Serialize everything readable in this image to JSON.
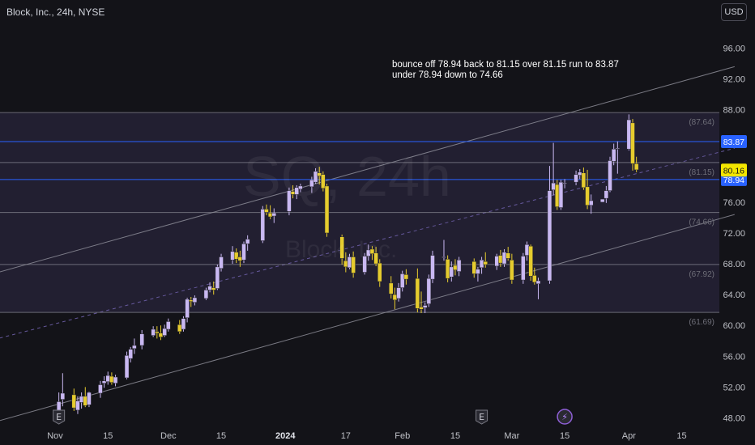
{
  "header": {
    "symbol": "Block, Inc., 24h, NYSE",
    "currency": "USD"
  },
  "watermark": {
    "ticker": "SQ, 24h",
    "name": "Block, Inc."
  },
  "annotation": {
    "line1": "bounce off 78.94 back to 81.15 over 81.15 run to 83.87",
    "line2": "under 78.94 down to 74.66"
  },
  "colors": {
    "background": "#131318",
    "bull": "#c9b8f2",
    "bear": "#e6cc2e",
    "level_line": "#2962ff",
    "channel": "#9b9ba6",
    "range_fill": "#28243a",
    "price_tag_bg": "#f3e600"
  },
  "chart_data": {
    "type": "candlestick",
    "title": "Block, Inc., 24h, NYSE",
    "y_axis": {
      "position": "right",
      "ticks": [
        "96.00",
        "92.00",
        "88.00",
        "84.00",
        "80.00",
        "76.00",
        "72.00",
        "68.00",
        "64.00",
        "60.00",
        "56.00",
        "52.00",
        "48.00"
      ],
      "range": [
        46.5,
        100
      ]
    },
    "x_axis": {
      "ticks": [
        {
          "label": "Nov",
          "date": "2023-11-01"
        },
        {
          "label": "15",
          "date": "2023-11-15"
        },
        {
          "label": "Dec",
          "date": "2023-12-01"
        },
        {
          "label": "15",
          "date": "2023-12-15"
        },
        {
          "label": "2024",
          "date": "2024-01-01"
        },
        {
          "label": "17",
          "date": "2024-01-17"
        },
        {
          "label": "Feb",
          "date": "2024-02-01"
        },
        {
          "label": "15",
          "date": "2024-02-15"
        },
        {
          "label": "Mar",
          "date": "2024-03-01"
        },
        {
          "label": "15",
          "date": "2024-03-15"
        },
        {
          "label": "Apr",
          "date": "2024-04-01"
        },
        {
          "label": "15",
          "date": "2024-04-15"
        }
      ]
    },
    "levels": [
      {
        "value": 87.64,
        "label": "(87.64)",
        "style": "gray"
      },
      {
        "value": 83.87,
        "label": "83.87",
        "style": "blue"
      },
      {
        "value": 81.15,
        "label": "(81.15)",
        "style": "gray"
      },
      {
        "value": 78.94,
        "label": "78.94",
        "style": "blue"
      },
      {
        "value": 74.66,
        "label": "(74.66)",
        "style": "gray"
      },
      {
        "value": 67.92,
        "label": "(67.92)",
        "style": "gray"
      },
      {
        "value": 61.69,
        "label": "(61.69)",
        "style": "gray"
      }
    ],
    "range_zone": {
      "from": 61.69,
      "to": 87.64
    },
    "channel": {
      "upper": [
        {
          "date": "2023-10-09",
          "value": 65.8
        },
        {
          "date": "2024-04-29",
          "value": 93.6
        }
      ],
      "middle": [
        {
          "date": "2023-10-09",
          "value": 57.3
        },
        {
          "date": "2024-04-29",
          "value": 83.0
        }
      ],
      "lower": [
        {
          "date": "2023-10-09",
          "value": 46.5
        },
        {
          "date": "2024-04-29",
          "value": 74.4
        }
      ]
    },
    "last_price": {
      "value": 80.16,
      "label": "80.16"
    },
    "event_markers": [
      {
        "date": "2023-11-02",
        "symbol": "E"
      },
      {
        "date": "2024-02-22",
        "symbol": "E"
      },
      {
        "date": "2024-03-15",
        "symbol": "⚡"
      }
    ],
    "candles": [
      {
        "date": "2023-11-02",
        "o": 49.0,
        "h": 51.3,
        "l": 47.2,
        "c": 50.1
      },
      {
        "date": "2023-11-03",
        "o": 50.4,
        "h": 53.8,
        "l": 49.5,
        "c": 51.2
      },
      {
        "date": "2023-11-06",
        "o": 51.0,
        "h": 51.8,
        "l": 48.9,
        "c": 49.3
      },
      {
        "date": "2023-11-07",
        "o": 49.0,
        "h": 50.8,
        "l": 48.5,
        "c": 50.2
      },
      {
        "date": "2023-11-08",
        "o": 50.0,
        "h": 51.3,
        "l": 49.2,
        "c": 50.8
      },
      {
        "date": "2023-11-09",
        "o": 50.8,
        "h": 52.0,
        "l": 49.4,
        "c": 49.6
      },
      {
        "date": "2023-11-10",
        "o": 49.7,
        "h": 51.4,
        "l": 49.4,
        "c": 51.3
      },
      {
        "date": "2023-11-13",
        "o": 51.2,
        "h": 52.8,
        "l": 50.6,
        "c": 52.3
      },
      {
        "date": "2023-11-14",
        "o": 52.5,
        "h": 53.4,
        "l": 51.9,
        "c": 52.8
      },
      {
        "date": "2023-11-15",
        "o": 52.7,
        "h": 54.0,
        "l": 52.3,
        "c": 53.5
      },
      {
        "date": "2023-11-16",
        "o": 53.4,
        "h": 53.9,
        "l": 52.3,
        "c": 52.6
      },
      {
        "date": "2023-11-17",
        "o": 52.5,
        "h": 53.6,
        "l": 52.1,
        "c": 53.3
      },
      {
        "date": "2023-11-20",
        "o": 53.2,
        "h": 56.6,
        "l": 53.0,
        "c": 56.1
      },
      {
        "date": "2023-11-21",
        "o": 55.7,
        "h": 57.2,
        "l": 55.2,
        "c": 56.9
      },
      {
        "date": "2023-11-22",
        "o": 57.0,
        "h": 58.3,
        "l": 56.3,
        "c": 57.4
      },
      {
        "date": "2023-11-24",
        "o": 57.4,
        "h": 59.4,
        "l": 56.9,
        "c": 58.9
      },
      {
        "date": "2023-11-27",
        "o": 58.7,
        "h": 59.9,
        "l": 58.5,
        "c": 59.5
      },
      {
        "date": "2023-11-28",
        "o": 59.2,
        "h": 59.9,
        "l": 58.3,
        "c": 59.0
      },
      {
        "date": "2023-11-29",
        "o": 59.0,
        "h": 60.0,
        "l": 58.1,
        "c": 58.5
      },
      {
        "date": "2023-11-30",
        "o": 58.7,
        "h": 60.1,
        "l": 58.5,
        "c": 59.6
      },
      {
        "date": "2023-12-01",
        "o": 59.5,
        "h": 60.9,
        "l": 59.2,
        "c": 60.5
      },
      {
        "date": "2023-12-04",
        "o": 60.1,
        "h": 60.7,
        "l": 58.9,
        "c": 59.2
      },
      {
        "date": "2023-12-05",
        "o": 59.5,
        "h": 61.2,
        "l": 59.2,
        "c": 60.9
      },
      {
        "date": "2023-12-06",
        "o": 61.0,
        "h": 63.6,
        "l": 60.4,
        "c": 63.4
      },
      {
        "date": "2023-12-07",
        "o": 63.3,
        "h": 63.7,
        "l": 62.4,
        "c": 63.1
      },
      {
        "date": "2023-12-08",
        "o": 63.0,
        "h": 63.9,
        "l": 62.6,
        "c": 63.6
      },
      {
        "date": "2023-12-11",
        "o": 63.5,
        "h": 64.9,
        "l": 63.3,
        "c": 64.6
      },
      {
        "date": "2023-12-12",
        "o": 64.6,
        "h": 65.6,
        "l": 64.3,
        "c": 65.1
      },
      {
        "date": "2023-12-13",
        "o": 64.9,
        "h": 65.7,
        "l": 64.0,
        "c": 64.6
      },
      {
        "date": "2023-12-14",
        "o": 64.8,
        "h": 67.9,
        "l": 64.6,
        "c": 67.6
      },
      {
        "date": "2023-12-15",
        "o": 67.4,
        "h": 69.3,
        "l": 67.0,
        "c": 68.9
      },
      {
        "date": "2023-12-18",
        "o": 68.5,
        "h": 70.3,
        "l": 68.0,
        "c": 69.6
      },
      {
        "date": "2023-12-19",
        "o": 69.5,
        "h": 70.0,
        "l": 68.1,
        "c": 68.6
      },
      {
        "date": "2023-12-20",
        "o": 68.9,
        "h": 69.7,
        "l": 67.6,
        "c": 68.4
      },
      {
        "date": "2023-12-21",
        "o": 68.5,
        "h": 70.9,
        "l": 68.1,
        "c": 70.6
      },
      {
        "date": "2023-12-22",
        "o": 70.6,
        "h": 71.7,
        "l": 69.7,
        "c": 71.2
      },
      {
        "date": "2023-12-26",
        "o": 71.0,
        "h": 75.5,
        "l": 70.7,
        "c": 75.1
      },
      {
        "date": "2023-12-27",
        "o": 75.1,
        "h": 75.7,
        "l": 74.3,
        "c": 74.7
      },
      {
        "date": "2023-12-28",
        "o": 74.6,
        "h": 75.6,
        "l": 73.8,
        "c": 74.1
      },
      {
        "date": "2023-12-29",
        "o": 74.2,
        "h": 75.2,
        "l": 73.3,
        "c": 74.6
      },
      {
        "date": "2024-01-02",
        "o": 74.8,
        "h": 77.9,
        "l": 74.3,
        "c": 77.5
      },
      {
        "date": "2024-01-03",
        "o": 77.4,
        "h": 78.2,
        "l": 76.5,
        "c": 77.0
      },
      {
        "date": "2024-01-04",
        "o": 77.0,
        "h": 78.2,
        "l": 76.4,
        "c": 77.9
      },
      {
        "date": "2024-01-05",
        "o": 77.7,
        "h": 78.4,
        "l": 77.3,
        "c": 78.1
      },
      {
        "date": "2024-01-08",
        "o": 78.0,
        "h": 79.3,
        "l": 77.2,
        "c": 78.9
      },
      {
        "date": "2024-01-09",
        "o": 78.6,
        "h": 80.4,
        "l": 78.4,
        "c": 80.0
      },
      {
        "date": "2024-01-10",
        "o": 79.8,
        "h": 80.6,
        "l": 78.3,
        "c": 79.4
      },
      {
        "date": "2024-01-11",
        "o": 79.6,
        "h": 80.0,
        "l": 77.4,
        "c": 77.8
      },
      {
        "date": "2024-01-12",
        "o": 78.1,
        "h": 78.4,
        "l": 71.5,
        "c": 72.0
      },
      {
        "date": "2024-01-16",
        "o": 71.5,
        "h": 71.8,
        "l": 67.9,
        "c": 68.7
      },
      {
        "date": "2024-01-17",
        "o": 68.4,
        "h": 69.5,
        "l": 66.9,
        "c": 67.6
      },
      {
        "date": "2024-01-18",
        "o": 67.5,
        "h": 69.3,
        "l": 67.3,
        "c": 68.9
      },
      {
        "date": "2024-01-19",
        "o": 68.9,
        "h": 69.6,
        "l": 66.2,
        "c": 66.8
      },
      {
        "date": "2024-01-22",
        "o": 66.9,
        "h": 69.4,
        "l": 66.6,
        "c": 69.0
      },
      {
        "date": "2024-01-23",
        "o": 69.0,
        "h": 70.5,
        "l": 68.4,
        "c": 69.8
      },
      {
        "date": "2024-01-24",
        "o": 69.9,
        "h": 70.3,
        "l": 68.5,
        "c": 69.3
      },
      {
        "date": "2024-01-25",
        "o": 69.4,
        "h": 70.2,
        "l": 67.7,
        "c": 68.0
      },
      {
        "date": "2024-01-26",
        "o": 68.1,
        "h": 68.6,
        "l": 65.0,
        "c": 65.7
      },
      {
        "date": "2024-01-29",
        "o": 65.5,
        "h": 66.4,
        "l": 63.5,
        "c": 64.1
      },
      {
        "date": "2024-01-30",
        "o": 64.0,
        "h": 64.9,
        "l": 62.1,
        "c": 63.3
      },
      {
        "date": "2024-01-31",
        "o": 63.5,
        "h": 65.5,
        "l": 63.1,
        "c": 64.9
      },
      {
        "date": "2024-02-01",
        "o": 64.9,
        "h": 67.1,
        "l": 64.4,
        "c": 66.7
      },
      {
        "date": "2024-02-02",
        "o": 66.6,
        "h": 67.3,
        "l": 65.3,
        "c": 66.0
      },
      {
        "date": "2024-02-05",
        "o": 66.1,
        "h": 67.4,
        "l": 61.7,
        "c": 62.2
      },
      {
        "date": "2024-02-06",
        "o": 62.4,
        "h": 64.4,
        "l": 61.6,
        "c": 62.1
      },
      {
        "date": "2024-02-07",
        "o": 62.3,
        "h": 63.0,
        "l": 61.6,
        "c": 62.6
      },
      {
        "date": "2024-02-08",
        "o": 62.8,
        "h": 66.6,
        "l": 62.4,
        "c": 66.1
      },
      {
        "date": "2024-02-09",
        "o": 66.0,
        "h": 69.7,
        "l": 65.5,
        "c": 69.1
      },
      {
        "date": "2024-02-12",
        "o": 68.8,
        "h": 71.1,
        "l": 68.4,
        "c": 68.9
      },
      {
        "date": "2024-02-13",
        "o": 68.6,
        "h": 69.1,
        "l": 65.6,
        "c": 66.1
      },
      {
        "date": "2024-02-14",
        "o": 66.3,
        "h": 68.3,
        "l": 65.7,
        "c": 67.6
      },
      {
        "date": "2024-02-15",
        "o": 67.8,
        "h": 68.6,
        "l": 66.5,
        "c": 67.2
      },
      {
        "date": "2024-02-16",
        "o": 67.0,
        "h": 68.9,
        "l": 66.4,
        "c": 68.5
      },
      {
        "date": "2024-02-20",
        "o": 68.3,
        "h": 68.7,
        "l": 66.2,
        "c": 66.7
      },
      {
        "date": "2024-02-21",
        "o": 66.7,
        "h": 67.6,
        "l": 65.7,
        "c": 67.3
      },
      {
        "date": "2024-02-22",
        "o": 67.5,
        "h": 68.9,
        "l": 66.7,
        "c": 68.5
      },
      {
        "date": "2024-02-23",
        "o": 68.3,
        "h": 69.5,
        "l": 67.5,
        "c": 67.9
      },
      {
        "date": "2024-02-26",
        "o": 67.7,
        "h": 69.3,
        "l": 67.2,
        "c": 69.0
      },
      {
        "date": "2024-02-27",
        "o": 69.1,
        "h": 69.8,
        "l": 67.6,
        "c": 68.1
      },
      {
        "date": "2024-02-28",
        "o": 68.0,
        "h": 69.9,
        "l": 67.6,
        "c": 69.5
      },
      {
        "date": "2024-02-29",
        "o": 69.4,
        "h": 70.2,
        "l": 68.4,
        "c": 68.7
      },
      {
        "date": "2024-03-01",
        "o": 68.5,
        "h": 69.3,
        "l": 65.4,
        "c": 65.9
      },
      {
        "date": "2024-03-04",
        "o": 65.9,
        "h": 69.4,
        "l": 65.4,
        "c": 69.0
      },
      {
        "date": "2024-03-05",
        "o": 69.1,
        "h": 70.9,
        "l": 68.4,
        "c": 70.5
      },
      {
        "date": "2024-03-06",
        "o": 70.3,
        "h": 70.5,
        "l": 65.8,
        "c": 66.4
      },
      {
        "date": "2024-03-07",
        "o": 66.5,
        "h": 67.5,
        "l": 65.3,
        "c": 65.6
      },
      {
        "date": "2024-03-08",
        "o": 65.4,
        "h": 66.2,
        "l": 63.4,
        "c": 65.8
      },
      {
        "date": "2024-03-11",
        "o": 65.8,
        "h": 80.7,
        "l": 65.4,
        "c": 77.5
      },
      {
        "date": "2024-03-12",
        "o": 77.6,
        "h": 83.7,
        "l": 76.9,
        "c": 78.5
      },
      {
        "date": "2024-03-13",
        "o": 78.3,
        "h": 78.9,
        "l": 75.0,
        "c": 75.4
      },
      {
        "date": "2024-03-14",
        "o": 75.3,
        "h": 78.9,
        "l": 75.0,
        "c": 78.6
      },
      {
        "date": "2024-03-15",
        "o": 78.4,
        "h": 79.0,
        "l": 77.8,
        "c": 78.5
      },
      {
        "date": "2024-03-18",
        "o": 78.6,
        "h": 80.1,
        "l": 78.2,
        "c": 79.6
      },
      {
        "date": "2024-03-19",
        "o": 79.5,
        "h": 80.3,
        "l": 79.0,
        "c": 79.9
      },
      {
        "date": "2024-03-20",
        "o": 79.8,
        "h": 80.5,
        "l": 77.6,
        "c": 77.9
      },
      {
        "date": "2024-03-21",
        "o": 78.0,
        "h": 80.2,
        "l": 75.1,
        "c": 75.6
      },
      {
        "date": "2024-03-22",
        "o": 75.6,
        "h": 77.0,
        "l": 74.5,
        "c": 76.2
      },
      {
        "date": "2024-03-25",
        "o": 76.0,
        "h": 76.4,
        "l": 76.0,
        "c": 76.4
      },
      {
        "date": "2024-03-26",
        "o": 76.5,
        "h": 78.1,
        "l": 75.9,
        "c": 77.5
      },
      {
        "date": "2024-03-27",
        "o": 77.5,
        "h": 81.9,
        "l": 77.3,
        "c": 81.4
      },
      {
        "date": "2024-03-28",
        "o": 81.3,
        "h": 83.6,
        "l": 80.8,
        "c": 82.9
      },
      {
        "date": "2024-03-29",
        "o": 82.9,
        "h": 83.9,
        "l": 79.7,
        "c": 83.0
      },
      {
        "date": "2024-04-01",
        "o": 82.9,
        "h": 87.4,
        "l": 82.7,
        "c": 86.7
      },
      {
        "date": "2024-04-02",
        "o": 86.3,
        "h": 86.8,
        "l": 80.1,
        "c": 81.0
      },
      {
        "date": "2024-04-03",
        "o": 81.0,
        "h": 81.9,
        "l": 79.9,
        "c": 80.2
      }
    ]
  }
}
